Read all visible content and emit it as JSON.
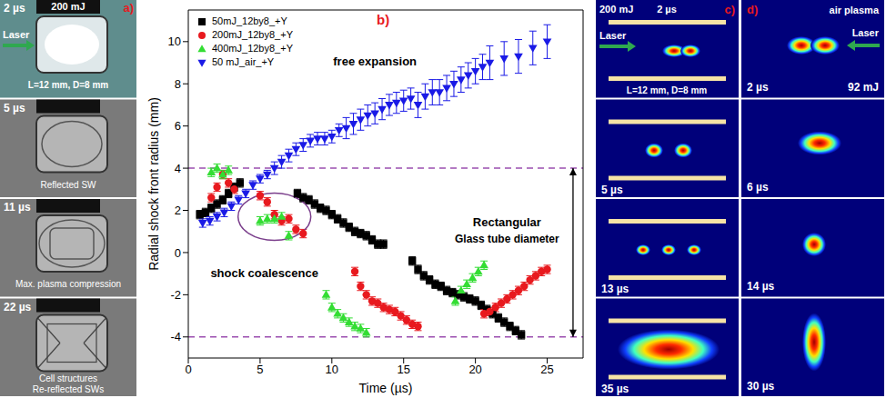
{
  "chart_data": {
    "type": "scatter",
    "title": "b)",
    "x_label": "Time (µs)",
    "y_label": "Radial shock front radius (mm)",
    "xlim": [
      0,
      27.5
    ],
    "xticks": [
      0,
      5,
      10,
      15,
      20,
      25
    ],
    "ylim": [
      -5,
      11.5
    ],
    "yticks": [
      -4,
      -2,
      0,
      2,
      4,
      6,
      8,
      10
    ],
    "legend": "upper left",
    "tube_radius": [
      4,
      -4
    ],
    "annotations": [
      "free expansion",
      "Rectangular",
      "Glass tube diameter",
      "shock coalescence"
    ],
    "series": [
      {
        "name": "50mJ_12by8_+Y",
        "color": "#000000",
        "marker": "square",
        "x": [
          0.8,
          1.2,
          1.6,
          2.0,
          2.4,
          2.8,
          3.2,
          3.6,
          7.6,
          8.0,
          8.4,
          8.8,
          9.2,
          9.6,
          10.0,
          10.4,
          10.8,
          11.2,
          11.6,
          12.0,
          12.4,
          12.8,
          13.2,
          13.6,
          15.6,
          16.0,
          16.4,
          16.8,
          17.2,
          17.6,
          18.0,
          18.4,
          18.8,
          19.2,
          19.6,
          20.0,
          20.4,
          20.8,
          21.2,
          21.6,
          22.0,
          22.4,
          22.8,
          23.2
        ],
        "values": [
          1.8,
          1.9,
          2.1,
          2.3,
          2.5,
          2.8,
          3.1,
          3.3,
          2.8,
          2.6,
          2.5,
          2.3,
          2.1,
          2.0,
          1.8,
          1.6,
          1.4,
          1.2,
          1.0,
          0.9,
          0.8,
          0.6,
          0.4,
          0.4,
          -0.4,
          -0.8,
          -1.1,
          -1.3,
          -1.5,
          -1.6,
          -1.8,
          -1.9,
          -2.0,
          -2.1,
          -2.2,
          -2.3,
          -2.5,
          -2.7,
          -2.9,
          -3.1,
          -3.3,
          -3.5,
          -3.7,
          -3.9
        ],
        "errors": [
          0.2,
          0.2,
          0.2,
          0.2,
          0.2,
          0.2,
          0.2,
          0.2,
          0.2,
          0.2,
          0.2,
          0.2,
          0.2,
          0.2,
          0.2,
          0.2,
          0.2,
          0.2,
          0.2,
          0.2,
          0.2,
          0.2,
          0.2,
          0.2,
          0.2,
          0.2,
          0.2,
          0.2,
          0.2,
          0.2,
          0.2,
          0.2,
          0.2,
          0.2,
          0.2,
          0.2,
          0.2,
          0.2,
          0.2,
          0.2,
          0.2,
          0.2,
          0.2,
          0.2
        ]
      },
      {
        "name": "200mJ_12by8_+Y",
        "color": "#e8191e",
        "marker": "circle",
        "x": [
          1.6,
          2.0,
          2.4,
          2.8,
          3.2,
          5.0,
          5.5,
          6.0,
          6.5,
          7.0,
          7.5,
          8.0,
          11.6,
          12.0,
          12.4,
          12.8,
          13.2,
          13.6,
          14.0,
          14.4,
          14.8,
          15.2,
          15.6,
          16.0,
          20.6,
          21.0,
          21.4,
          21.8,
          22.2,
          22.6,
          23.0,
          23.4,
          23.8,
          24.2,
          24.6,
          25.0
        ],
        "values": [
          2.6,
          3.1,
          3.7,
          3.3,
          3.0,
          2.7,
          2.4,
          1.8,
          1.5,
          1.6,
          1.1,
          0.9,
          -0.9,
          -1.6,
          -2.0,
          -2.3,
          -2.4,
          -2.6,
          -2.7,
          -2.8,
          -3.0,
          -3.2,
          -3.4,
          -3.5,
          -2.9,
          -2.8,
          -2.6,
          -2.4,
          -2.2,
          -2.0,
          -1.8,
          -1.6,
          -1.3,
          -1.1,
          -0.9,
          -0.8
        ],
        "errors": [
          0.2,
          0.2,
          0.2,
          0.2,
          0.2,
          0.2,
          0.2,
          0.2,
          0.2,
          0.2,
          0.2,
          0.2,
          0.2,
          0.2,
          0.2,
          0.2,
          0.2,
          0.2,
          0.2,
          0.2,
          0.2,
          0.2,
          0.2,
          0.2,
          0.2,
          0.2,
          0.2,
          0.2,
          0.2,
          0.2,
          0.2,
          0.2,
          0.2,
          0.2,
          0.2,
          0.2
        ]
      },
      {
        "name": "400mJ_12by8_+Y",
        "color": "#33dd33",
        "marker": "triangle",
        "x": [
          1.6,
          2.0,
          2.4,
          2.8,
          5.0,
          5.5,
          6.0,
          6.5,
          7.0,
          9.6,
          10.0,
          10.4,
          10.8,
          11.2,
          11.6,
          12.0,
          12.4,
          18.6,
          19.0,
          19.4,
          19.8,
          20.2,
          20.6
        ],
        "values": [
          3.8,
          4.0,
          3.7,
          3.9,
          1.5,
          1.6,
          1.6,
          1.7,
          0.8,
          -2.0,
          -2.6,
          -2.9,
          -3.1,
          -3.3,
          -3.5,
          -3.6,
          -3.8,
          -2.3,
          -1.8,
          -1.5,
          -1.2,
          -0.9,
          -0.6
        ],
        "errors": [
          0.2,
          0.2,
          0.2,
          0.2,
          0.2,
          0.2,
          0.2,
          0.2,
          0.2,
          0.2,
          0.2,
          0.2,
          0.2,
          0.2,
          0.2,
          0.2,
          0.2,
          0.2,
          0.2,
          0.2,
          0.2,
          0.2,
          0.2
        ]
      },
      {
        "name": "50 mJ_air_+Y",
        "color": "#1a1ae6",
        "marker": "triangle_down",
        "x": [
          1.0,
          1.5,
          2.0,
          2.5,
          3.0,
          3.5,
          4.0,
          4.5,
          5.0,
          5.5,
          6.0,
          6.5,
          7.0,
          7.5,
          8.0,
          8.5,
          9.0,
          9.5,
          10.0,
          10.5,
          11.0,
          11.5,
          12.0,
          12.5,
          13.0,
          13.5,
          14.0,
          14.5,
          15.0,
          15.5,
          16.0,
          16.5,
          17.0,
          17.5,
          18.0,
          18.5,
          19.0,
          19.5,
          20.0,
          20.5,
          21.0,
          22.0,
          23.0,
          24.0,
          25.0
        ],
        "values": [
          1.4,
          1.5,
          1.7,
          1.9,
          2.2,
          2.5,
          2.8,
          3.2,
          3.5,
          3.7,
          4.0,
          4.3,
          4.6,
          4.9,
          5.1,
          5.3,
          5.4,
          5.4,
          5.5,
          5.8,
          5.9,
          6.1,
          6.3,
          6.5,
          6.6,
          6.8,
          7.0,
          7.1,
          7.2,
          7.3,
          7.0,
          7.4,
          7.6,
          7.6,
          7.8,
          8.0,
          8.2,
          8.4,
          8.6,
          8.8,
          9.0,
          9.2,
          9.3,
          9.7,
          10.0
        ],
        "errors": [
          0.2,
          0.2,
          0.2,
          0.2,
          0.2,
          0.2,
          0.2,
          0.2,
          0.2,
          0.2,
          0.3,
          0.3,
          0.3,
          0.3,
          0.3,
          0.3,
          0.3,
          0.3,
          0.3,
          0.3,
          0.5,
          0.5,
          0.5,
          0.5,
          0.5,
          0.5,
          0.5,
          0.5,
          0.5,
          0.5,
          0.6,
          0.6,
          0.6,
          0.6,
          0.6,
          0.6,
          0.6,
          0.6,
          0.6,
          0.6,
          0.8,
          0.8,
          0.8,
          0.8,
          0.8
        ]
      }
    ]
  },
  "panels": {
    "a": {
      "label": "a)",
      "energy": "200 mJ",
      "laser": "Laser",
      "size": "L=12 mm, D=8 mm",
      "frames": [
        {
          "time": "2 µs"
        },
        {
          "time": "5 µs",
          "notes": [
            "Reflected SW"
          ]
        },
        {
          "time": "11 µs",
          "notes": [
            "Max. plasma compression"
          ]
        },
        {
          "time": "22 µs",
          "notes": [
            "Cell structures",
            "Re-reflected SWs"
          ]
        }
      ]
    },
    "c": {
      "label": "c)",
      "energy": "200 mJ",
      "laser": "Laser",
      "size": "L=12 mm, D=8 mm",
      "times": [
        "2 µs",
        "5 µs",
        "13 µs",
        "35 µs"
      ]
    },
    "d": {
      "label": "d)",
      "title": "air plasma",
      "laser": "Laser",
      "energy": "92 mJ",
      "times": [
        "2 µs",
        "6 µs",
        "14 µs",
        "30 µs"
      ]
    }
  }
}
